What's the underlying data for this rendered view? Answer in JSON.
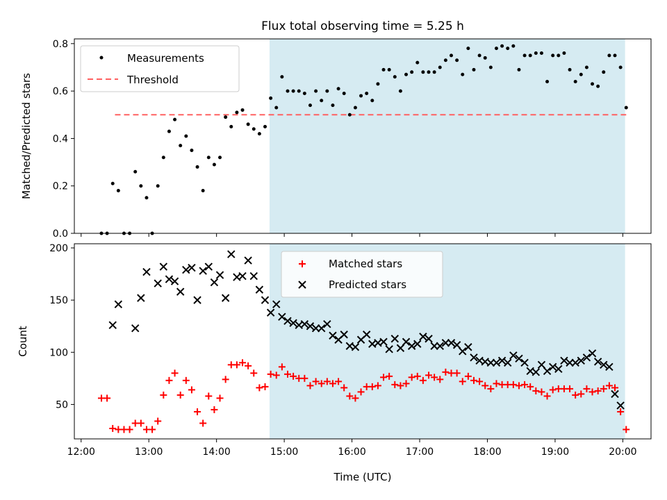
{
  "title": "Flux total observing time = 5.25 h",
  "colors": {
    "shade": "#add8e6",
    "threshold": "#ff6060",
    "matched": "#ff0000",
    "predicted": "#000000",
    "measurements": "#000000"
  },
  "chart_data": [
    {
      "type": "scatter",
      "ylabel": "Matched/Predicted stars",
      "ylim": [
        0,
        0.82
      ],
      "yticks": [
        0.0,
        0.2,
        0.4,
        0.6,
        0.8
      ],
      "ytick_labels": [
        "0.0",
        "0.2",
        "0.4",
        "0.6",
        "0.8"
      ],
      "legend": [
        "Measurements",
        "Threshold"
      ],
      "legend_position": "top-left",
      "threshold": 0.5,
      "threshold_range": [
        "12:30",
        "20:03"
      ],
      "shaded_range": [
        "14:47",
        "20:02"
      ],
      "series": [
        {
          "name": "Measurements",
          "x": [
            "12:18",
            "12:23",
            "12:28",
            "12:33",
            "12:38",
            "12:43",
            "12:48",
            "12:53",
            "12:58",
            "13:03",
            "13:08",
            "13:13",
            "13:18",
            "13:23",
            "13:28",
            "13:33",
            "13:38",
            "13:43",
            "13:48",
            "13:53",
            "13:58",
            "14:03",
            "14:08",
            "14:13",
            "14:18",
            "14:23",
            "14:28",
            "14:33",
            "14:38",
            "14:43",
            "14:48",
            "14:53",
            "14:58",
            "15:03",
            "15:08",
            "15:13",
            "15:18",
            "15:23",
            "15:28",
            "15:33",
            "15:38",
            "15:43",
            "15:48",
            "15:53",
            "15:58",
            "16:03",
            "16:08",
            "16:13",
            "16:18",
            "16:23",
            "16:28",
            "16:33",
            "16:38",
            "16:43",
            "16:48",
            "16:53",
            "16:58",
            "17:03",
            "17:08",
            "17:13",
            "17:18",
            "17:23",
            "17:28",
            "17:33",
            "17:38",
            "17:43",
            "17:48",
            "17:53",
            "17:58",
            "18:03",
            "18:08",
            "18:13",
            "18:18",
            "18:23",
            "18:28",
            "18:33",
            "18:38",
            "18:43",
            "18:48",
            "18:53",
            "18:58",
            "19:03",
            "19:08",
            "19:13",
            "19:18",
            "19:23",
            "19:28",
            "19:33",
            "19:38",
            "19:43",
            "19:48",
            "19:53",
            "19:58",
            "20:03"
          ],
          "y": [
            0.0,
            0.0,
            0.21,
            0.18,
            0.0,
            0.0,
            0.26,
            0.2,
            0.15,
            0.0,
            0.2,
            0.32,
            0.43,
            0.48,
            0.37,
            0.41,
            0.35,
            0.28,
            0.18,
            0.32,
            0.29,
            0.32,
            0.49,
            0.45,
            0.51,
            0.52,
            0.46,
            0.44,
            0.42,
            0.45,
            0.57,
            0.53,
            0.66,
            0.6,
            0.6,
            0.6,
            0.59,
            0.54,
            0.6,
            0.56,
            0.6,
            0.54,
            0.61,
            0.59,
            0.5,
            0.53,
            0.58,
            0.59,
            0.56,
            0.63,
            0.69,
            0.69,
            0.66,
            0.6,
            0.67,
            0.68,
            0.72,
            0.68,
            0.68,
            0.68,
            0.7,
            0.73,
            0.75,
            0.73,
            0.67,
            0.78,
            0.69,
            0.75,
            0.74,
            0.7,
            0.78,
            0.79,
            0.78,
            0.79,
            0.69,
            0.75,
            0.75,
            0.76,
            0.76,
            0.64,
            0.75,
            0.75,
            0.76,
            0.69,
            0.64,
            0.67,
            0.7,
            0.63,
            0.62,
            0.68,
            0.75,
            0.75,
            0.7,
            0.53
          ]
        }
      ]
    },
    {
      "type": "scatter",
      "ylabel": "Count",
      "xlabel": "Time (UTC)",
      "ylim": [
        17,
        204
      ],
      "yticks": [
        50,
        100,
        150,
        200
      ],
      "ytick_labels": [
        "50",
        "100",
        "150",
        "200"
      ],
      "xlim": [
        "11:54",
        "20:25"
      ],
      "xticks": [
        "12:00",
        "13:00",
        "14:00",
        "15:00",
        "16:00",
        "17:00",
        "18:00",
        "19:00",
        "20:00"
      ],
      "xtick_labels": [
        "12:00",
        "13:00",
        "14:00",
        "15:00",
        "16:00",
        "17:00",
        "18:00",
        "19:00",
        "20:00"
      ],
      "legend": [
        "Matched stars",
        "Predicted stars"
      ],
      "legend_position": "top-center",
      "shaded_range": [
        "14:47",
        "20:02"
      ],
      "series": [
        {
          "name": "Matched stars",
          "marker": "plus",
          "x": [
            "12:18",
            "12:23",
            "12:28",
            "12:33",
            "12:38",
            "12:43",
            "12:48",
            "12:53",
            "12:58",
            "13:03",
            "13:08",
            "13:13",
            "13:18",
            "13:23",
            "13:28",
            "13:33",
            "13:38",
            "13:43",
            "13:48",
            "13:53",
            "13:58",
            "14:03",
            "14:08",
            "14:13",
            "14:18",
            "14:23",
            "14:28",
            "14:33",
            "14:38",
            "14:43",
            "14:48",
            "14:53",
            "14:58",
            "15:03",
            "15:08",
            "15:13",
            "15:18",
            "15:23",
            "15:28",
            "15:33",
            "15:38",
            "15:43",
            "15:48",
            "15:53",
            "15:58",
            "16:03",
            "16:08",
            "16:13",
            "16:18",
            "16:23",
            "16:28",
            "16:33",
            "16:38",
            "16:43",
            "16:48",
            "16:53",
            "16:58",
            "17:03",
            "17:08",
            "17:13",
            "17:18",
            "17:23",
            "17:28",
            "17:33",
            "17:38",
            "17:43",
            "17:48",
            "17:53",
            "17:58",
            "18:03",
            "18:08",
            "18:13",
            "18:18",
            "18:23",
            "18:28",
            "18:33",
            "18:38",
            "18:43",
            "18:48",
            "18:53",
            "18:58",
            "19:03",
            "19:08",
            "19:13",
            "19:18",
            "19:23",
            "19:28",
            "19:33",
            "19:38",
            "19:43",
            "19:48",
            "19:53",
            "19:58",
            "20:03"
          ],
          "y": [
            56,
            56,
            27,
            26,
            26,
            26,
            32,
            32,
            26,
            26,
            34,
            59,
            73,
            80,
            59,
            73,
            64,
            43,
            32,
            58,
            45,
            56,
            74,
            88,
            88,
            90,
            87,
            80,
            66,
            67,
            79,
            78,
            86,
            79,
            77,
            75,
            75,
            68,
            72,
            70,
            72,
            70,
            72,
            66,
            58,
            56,
            62,
            67,
            67,
            68,
            76,
            77,
            69,
            68,
            70,
            76,
            77,
            73,
            78,
            76,
            74,
            81,
            80,
            80,
            72,
            77,
            73,
            72,
            68,
            65,
            70,
            69,
            69,
            69,
            68,
            69,
            67,
            63,
            62,
            58,
            64,
            65,
            65,
            65,
            59,
            60,
            65,
            62,
            63,
            65,
            68,
            66,
            43,
            26
          ]
        },
        {
          "name": "Predicted stars",
          "marker": "x",
          "x": [
            "12:18",
            "12:23",
            "12:28",
            "12:33",
            "12:38",
            "12:43",
            "12:48",
            "12:53",
            "12:58",
            "13:03",
            "13:08",
            "13:13",
            "13:18",
            "13:23",
            "13:28",
            "13:33",
            "13:38",
            "13:43",
            "13:48",
            "13:53",
            "13:58",
            "14:03",
            "14:08",
            "14:13",
            "14:18",
            "14:23",
            "14:28",
            "14:33",
            "14:38",
            "14:43",
            "14:48",
            "14:53",
            "14:58",
            "15:03",
            "15:08",
            "15:13",
            "15:18",
            "15:23",
            "15:28",
            "15:33",
            "15:38",
            "15:43",
            "15:48",
            "15:53",
            "15:58",
            "16:03",
            "16:08",
            "16:13",
            "16:18",
            "16:23",
            "16:28",
            "16:33",
            "16:38",
            "16:43",
            "16:48",
            "16:53",
            "16:58",
            "17:03",
            "17:08",
            "17:13",
            "17:18",
            "17:23",
            "17:28",
            "17:33",
            "17:38",
            "17:43",
            "17:48",
            "17:53",
            "17:58",
            "18:03",
            "18:08",
            "18:13",
            "18:18",
            "18:23",
            "18:28",
            "18:33",
            "18:38",
            "18:43",
            "18:48",
            "18:53",
            "18:58",
            "19:03",
            "19:08",
            "19:13",
            "19:18",
            "19:23",
            "19:28",
            "19:33",
            "19:38",
            "19:43",
            "19:48",
            "19:53",
            "19:58",
            "20:03"
          ],
          "y": [
            null,
            null,
            126,
            146,
            null,
            null,
            123,
            152,
            177,
            null,
            166,
            182,
            170,
            168,
            158,
            179,
            181,
            150,
            178,
            182,
            167,
            174,
            152,
            194,
            172,
            173,
            188,
            173,
            160,
            150,
            138,
            146,
            134,
            130,
            128,
            126,
            127,
            125,
            123,
            123,
            127,
            116,
            112,
            117,
            106,
            105,
            112,
            117,
            108,
            109,
            110,
            103,
            113,
            104,
            110,
            106,
            108,
            115,
            113,
            106,
            106,
            109,
            109,
            107,
            101,
            105,
            95,
            92,
            91,
            90,
            90,
            92,
            90,
            97,
            94,
            90,
            82,
            81,
            88,
            82,
            86,
            84,
            92,
            90,
            90,
            92,
            95,
            99,
            91,
            88,
            86,
            60,
            49,
            null
          ]
        }
      ]
    }
  ]
}
